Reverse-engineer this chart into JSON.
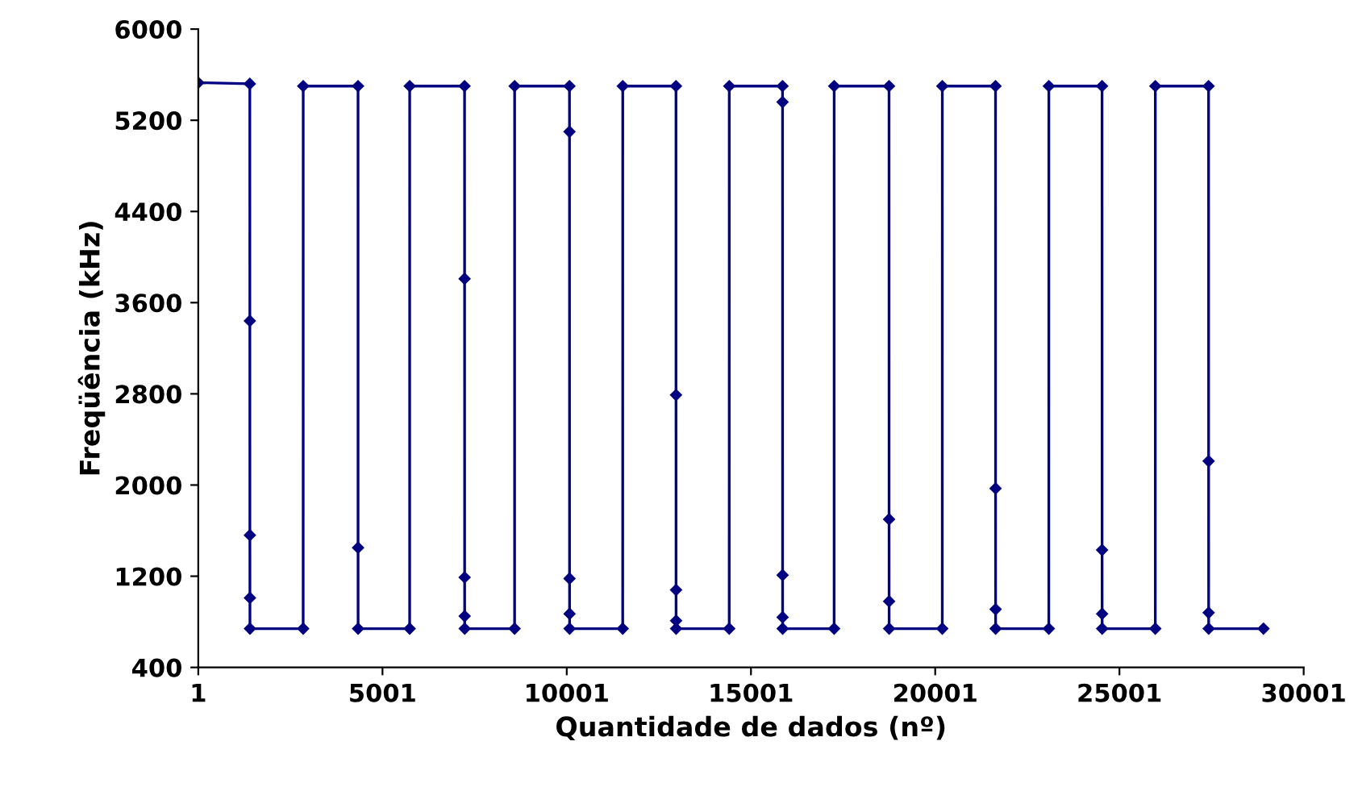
{
  "chart_data": {
    "type": "line",
    "xlabel": "Quantidade de dados (nº)",
    "ylabel": "Freqüência (kHz)",
    "xlim": [
      1,
      30001
    ],
    "xticks": [
      1,
      5001,
      10001,
      15001,
      20001,
      25001,
      30001
    ],
    "ylim": [
      400,
      6000
    ],
    "yticks": [
      400,
      1200,
      2000,
      2800,
      3600,
      4400,
      5200,
      6000
    ],
    "grid": false,
    "legend": false,
    "marker": "diamond",
    "line_style": "solid",
    "series": [
      {
        "color": "#000080",
        "x": [
          1,
          1400,
          1401,
          1402,
          1403,
          1404,
          2848,
          2849,
          4337,
          4338,
          4339,
          5738,
          5739,
          7228,
          7229,
          7230,
          7231,
          7232,
          8586,
          8587,
          10075,
          10076,
          10077,
          10078,
          10079,
          11520,
          11521,
          12966,
          12967,
          12968,
          12969,
          12970,
          14411,
          14412,
          15857,
          15858,
          15859,
          15860,
          15861,
          17258,
          17259,
          18748,
          18749,
          18750,
          18751,
          20193,
          20194,
          21638,
          21639,
          21640,
          21641,
          23084,
          23085,
          24529,
          24530,
          24531,
          24532,
          25974,
          25975,
          27420,
          27421,
          27422,
          27423,
          28910
        ],
        "values": [
          5530,
          5520,
          3440,
          1560,
          1010,
          740,
          740,
          5500,
          5500,
          1450,
          740,
          740,
          5500,
          5500,
          3810,
          1190,
          850,
          740,
          740,
          5500,
          5500,
          5100,
          1180,
          870,
          740,
          740,
          5500,
          5500,
          2790,
          1080,
          810,
          740,
          740,
          5500,
          5500,
          5360,
          1210,
          840,
          740,
          740,
          5500,
          5500,
          1700,
          980,
          740,
          740,
          5500,
          5500,
          1970,
          910,
          740,
          740,
          5500,
          5500,
          1430,
          870,
          740,
          740,
          5500,
          5500,
          2210,
          880,
          740,
          740
        ]
      }
    ]
  }
}
